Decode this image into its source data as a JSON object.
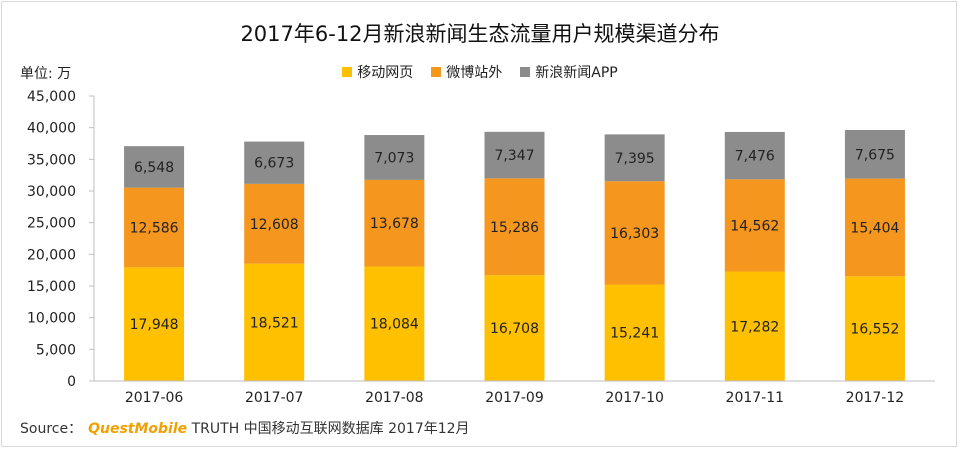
{
  "title": "2017年6-12月新浪新闻生态流量用户规模渠道分布",
  "unit": "单位: 万",
  "source": {
    "prefix": "Source：",
    "brand": "QuestMobile",
    "rest": "TRUTH 中国移动互联网数据库 2017年12月"
  },
  "colors": {
    "移动网页": "#ffc000",
    "微博站外": "#f5961e",
    "新浪新闻APP": "#8c8c8c"
  },
  "chart_data": {
    "type": "bar",
    "stacked": true,
    "categories": [
      "2017-06",
      "2017-07",
      "2017-08",
      "2017-09",
      "2017-10",
      "2017-11",
      "2017-12"
    ],
    "series": [
      {
        "name": "移动网页",
        "values": [
          17948,
          18521,
          18084,
          16708,
          15241,
          17282,
          16552
        ],
        "labels": [
          "17,948",
          "18,521",
          "18,084",
          "16,708",
          "15,241",
          "17,282",
          "16,552"
        ]
      },
      {
        "name": "微博站外",
        "values": [
          12586,
          12608,
          13678,
          15286,
          16303,
          14562,
          15404
        ],
        "labels": [
          "12,586",
          "12,608",
          "13,678",
          "15,286",
          "16,303",
          "14,562",
          "15,404"
        ]
      },
      {
        "name": "新浪新闻APP",
        "values": [
          6548,
          6673,
          7073,
          7347,
          7395,
          7476,
          7675
        ],
        "labels": [
          "6,548",
          "6,673",
          "7,073",
          "7,347",
          "7,395",
          "7,476",
          "7,675"
        ]
      }
    ],
    "ylim": [
      0,
      45000
    ],
    "yticks": [
      0,
      5000,
      10000,
      15000,
      20000,
      25000,
      30000,
      35000,
      40000,
      45000
    ],
    "ytick_labels": [
      "0",
      "5,000",
      "10,000",
      "15,000",
      "20,000",
      "25,000",
      "30,000",
      "35,000",
      "40,000",
      "45,000"
    ],
    "legend_position": "top-center",
    "grid": false
  }
}
